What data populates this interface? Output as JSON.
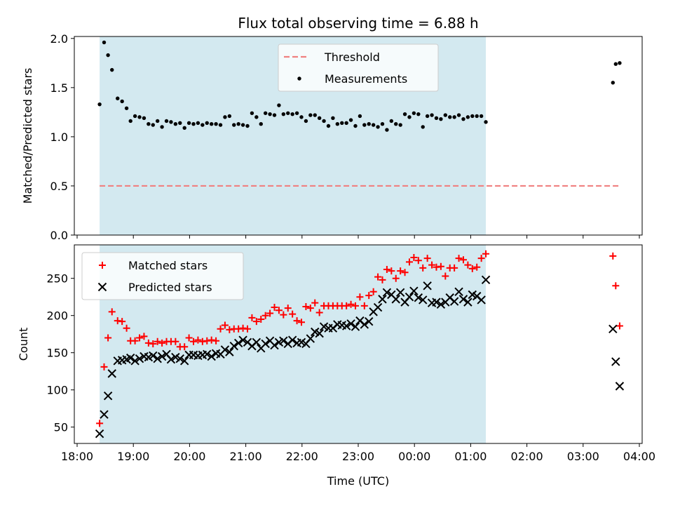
{
  "title": "Flux total observing time = 6.88 h",
  "xaxis": {
    "label": "Time (UTC)",
    "ticks": [
      {
        "h": 0,
        "label": "18:00"
      },
      {
        "h": 1,
        "label": "19:00"
      },
      {
        "h": 2,
        "label": "20:00"
      },
      {
        "h": 3,
        "label": "21:00"
      },
      {
        "h": 4,
        "label": "22:00"
      },
      {
        "h": 5,
        "label": "23:00"
      },
      {
        "h": 6,
        "label": "00:00"
      },
      {
        "h": 7,
        "label": "01:00"
      },
      {
        "h": 8,
        "label": "02:00"
      },
      {
        "h": 9,
        "label": "03:00"
      },
      {
        "h": 10,
        "label": "04:00"
      }
    ]
  },
  "colors": {
    "shade": "#d3e9f0",
    "threshold": "#f08080",
    "measurements": "#000000",
    "matched": "#ff0000",
    "predicted": "#000000"
  },
  "chart_data": [
    {
      "type": "scatter",
      "ylabel": "Matched/Predicted stars",
      "xlim": [
        -0.05,
        10.05
      ],
      "ylim": [
        0,
        2.02
      ],
      "yticks": [
        {
          "v": 0,
          "label": "0.0"
        },
        {
          "v": 0.5,
          "label": "0.5"
        },
        {
          "v": 1,
          "label": "1.0"
        },
        {
          "v": 1.5,
          "label": "1.5"
        },
        {
          "v": 2,
          "label": "2.0"
        }
      ],
      "shaded_interval": [
        0.4,
        7.27
      ],
      "threshold": {
        "name": "Threshold",
        "value": 0.5,
        "x_range": [
          0.4,
          9.65
        ]
      },
      "legend": {
        "placement": "upper center",
        "entries": [
          "Threshold",
          "Measurements"
        ]
      },
      "series": [
        {
          "name": "Measurements",
          "x": [
            0.4,
            0.48,
            0.55,
            0.62,
            0.72,
            0.8,
            0.88,
            0.95,
            1.03,
            1.11,
            1.19,
            1.27,
            1.35,
            1.43,
            1.51,
            1.59,
            1.67,
            1.75,
            1.83,
            1.91,
            1.99,
            2.07,
            2.15,
            2.23,
            2.31,
            2.39,
            2.47,
            2.55,
            2.63,
            2.71,
            2.79,
            2.87,
            2.95,
            3.03,
            3.11,
            3.19,
            3.27,
            3.35,
            3.43,
            3.51,
            3.59,
            3.67,
            3.75,
            3.83,
            3.91,
            3.99,
            4.07,
            4.15,
            4.23,
            4.31,
            4.39,
            4.47,
            4.55,
            4.63,
            4.71,
            4.79,
            4.87,
            4.95,
            5.03,
            5.11,
            5.19,
            5.27,
            5.35,
            5.43,
            5.51,
            5.59,
            5.67,
            5.75,
            5.83,
            5.91,
            5.99,
            6.07,
            6.15,
            6.23,
            6.31,
            6.39,
            6.47,
            6.55,
            6.63,
            6.71,
            6.79,
            6.87,
            6.95,
            7.03,
            7.11,
            7.19,
            7.27,
            9.53,
            9.58,
            9.65
          ],
          "y": [
            1.33,
            1.96,
            1.83,
            1.68,
            1.39,
            1.36,
            1.29,
            1.16,
            1.21,
            1.2,
            1.19,
            1.13,
            1.12,
            1.16,
            1.1,
            1.16,
            1.15,
            1.13,
            1.14,
            1.09,
            1.14,
            1.13,
            1.14,
            1.12,
            1.14,
            1.13,
            1.13,
            1.12,
            1.2,
            1.21,
            1.12,
            1.13,
            1.12,
            1.11,
            1.24,
            1.2,
            1.13,
            1.24,
            1.23,
            1.22,
            1.32,
            1.23,
            1.24,
            1.23,
            1.24,
            1.2,
            1.16,
            1.22,
            1.22,
            1.19,
            1.16,
            1.11,
            1.19,
            1.13,
            1.14,
            1.14,
            1.17,
            1.11,
            1.21,
            1.12,
            1.13,
            1.12,
            1.1,
            1.13,
            1.07,
            1.16,
            1.13,
            1.12,
            1.23,
            1.2,
            1.24,
            1.23,
            1.1,
            1.21,
            1.22,
            1.19,
            1.18,
            1.22,
            1.2,
            1.2,
            1.22,
            1.18,
            1.2,
            1.21,
            1.21,
            1.21,
            1.15,
            1.55,
            1.74,
            1.75
          ]
        }
      ]
    },
    {
      "type": "scatter",
      "ylabel": "Count",
      "xlabel": "Time (UTC)",
      "xlim": [
        -0.05,
        10.05
      ],
      "ylim": [
        28,
        295
      ],
      "yticks": [
        {
          "v": 50,
          "label": "50"
        },
        {
          "v": 100,
          "label": "100"
        },
        {
          "v": 150,
          "label": "150"
        },
        {
          "v": 200,
          "label": "200"
        },
        {
          "v": 250,
          "label": "250"
        }
      ],
      "shaded_interval": [
        0.4,
        7.27
      ],
      "legend": {
        "placement": "upper left",
        "entries": [
          "Matched stars",
          "Predicted stars"
        ]
      },
      "series": [
        {
          "name": "Matched stars",
          "marker": "+",
          "x": [
            0.4,
            0.48,
            0.55,
            0.62,
            0.72,
            0.8,
            0.88,
            0.95,
            1.03,
            1.11,
            1.19,
            1.27,
            1.35,
            1.43,
            1.51,
            1.59,
            1.67,
            1.75,
            1.83,
            1.91,
            1.99,
            2.07,
            2.15,
            2.23,
            2.31,
            2.39,
            2.47,
            2.55,
            2.63,
            2.71,
            2.79,
            2.87,
            2.95,
            3.03,
            3.11,
            3.19,
            3.27,
            3.35,
            3.43,
            3.51,
            3.59,
            3.67,
            3.75,
            3.83,
            3.91,
            3.99,
            4.07,
            4.15,
            4.23,
            4.31,
            4.39,
            4.47,
            4.55,
            4.63,
            4.71,
            4.79,
            4.87,
            4.95,
            5.03,
            5.11,
            5.19,
            5.27,
            5.35,
            5.43,
            5.51,
            5.59,
            5.67,
            5.75,
            5.83,
            5.91,
            5.99,
            6.07,
            6.15,
            6.23,
            6.31,
            6.39,
            6.47,
            6.55,
            6.63,
            6.71,
            6.79,
            6.87,
            6.95,
            7.03,
            7.11,
            7.19,
            7.27,
            9.53,
            9.58,
            9.65
          ],
          "y": [
            55,
            131,
            170,
            205,
            193,
            192,
            183,
            166,
            166,
            170,
            172,
            163,
            162,
            165,
            163,
            165,
            165,
            165,
            158,
            158,
            170,
            165,
            167,
            165,
            166,
            167,
            166,
            182,
            187,
            181,
            182,
            182,
            183,
            182,
            197,
            192,
            195,
            200,
            203,
            211,
            207,
            201,
            210,
            202,
            193,
            191,
            212,
            210,
            217,
            204,
            213,
            213,
            213,
            213,
            213,
            213,
            215,
            213,
            225,
            213,
            227,
            232,
            252,
            248,
            262,
            260,
            250,
            260,
            258,
            272,
            278,
            274,
            264,
            277,
            268,
            265,
            266,
            253,
            264,
            264,
            277,
            275,
            268,
            263,
            265,
            277,
            283,
            280,
            240,
            186
          ]
        },
        {
          "name": "Predicted stars",
          "marker": "x",
          "x": [
            0.4,
            0.48,
            0.55,
            0.62,
            0.72,
            0.8,
            0.88,
            0.95,
            1.03,
            1.11,
            1.19,
            1.27,
            1.35,
            1.43,
            1.51,
            1.59,
            1.67,
            1.75,
            1.83,
            1.91,
            1.99,
            2.07,
            2.15,
            2.23,
            2.31,
            2.39,
            2.47,
            2.55,
            2.63,
            2.71,
            2.79,
            2.87,
            2.95,
            3.03,
            3.11,
            3.19,
            3.27,
            3.35,
            3.43,
            3.51,
            3.59,
            3.67,
            3.75,
            3.83,
            3.91,
            3.99,
            4.07,
            4.15,
            4.23,
            4.31,
            4.39,
            4.47,
            4.55,
            4.63,
            4.71,
            4.79,
            4.87,
            4.95,
            5.03,
            5.11,
            5.19,
            5.27,
            5.35,
            5.43,
            5.51,
            5.59,
            5.67,
            5.75,
            5.83,
            5.91,
            5.99,
            6.07,
            6.15,
            6.23,
            6.31,
            6.39,
            6.47,
            6.55,
            6.63,
            6.71,
            6.79,
            6.87,
            6.95,
            7.03,
            7.11,
            7.19,
            7.27,
            9.53,
            9.58,
            9.65
          ],
          "y": [
            41,
            67,
            92,
            122,
            139,
            140,
            141,
            143,
            139,
            142,
            145,
            144,
            146,
            142,
            145,
            148,
            141,
            144,
            142,
            139,
            147,
            147,
            146,
            147,
            148,
            145,
            149,
            148,
            154,
            151,
            159,
            163,
            167,
            164,
            159,
            164,
            156,
            162,
            166,
            160,
            164,
            166,
            162,
            167,
            163,
            164,
            162,
            169,
            178,
            176,
            185,
            183,
            183,
            188,
            187,
            186,
            189,
            185,
            193,
            188,
            192,
            205,
            211,
            222,
            231,
            228,
            222,
            231,
            218,
            225,
            233,
            224,
            221,
            240,
            217,
            218,
            215,
            218,
            224,
            219,
            232,
            222,
            218,
            228,
            226,
            221,
            248,
            182,
            138,
            105
          ]
        }
      ]
    }
  ]
}
